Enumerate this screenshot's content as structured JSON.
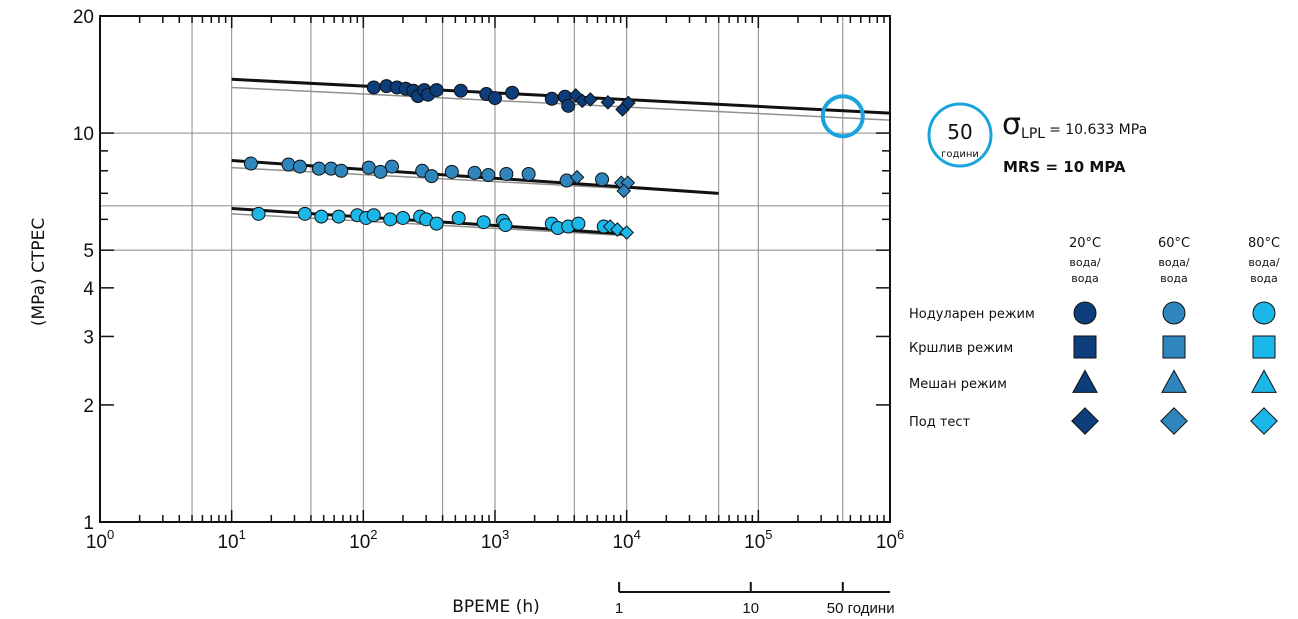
{
  "chart_data": {
    "type": "scatter",
    "xlabel": "ВРЕМЕ (h)",
    "ylabel": "(MPa) СТРЕС",
    "x_scale": "log",
    "y_scale": "log",
    "xlim": [
      1,
      1000000
    ],
    "ylim": [
      1,
      20
    ],
    "x_ticks": [
      {
        "value": 1,
        "base": "10",
        "exp": "0"
      },
      {
        "value": 10,
        "base": "10",
        "exp": "1"
      },
      {
        "value": 100,
        "base": "10",
        "exp": "2"
      },
      {
        "value": 1000,
        "base": "10",
        "exp": "3"
      },
      {
        "value": 10000,
        "base": "10",
        "exp": "4"
      },
      {
        "value": 100000,
        "base": "10",
        "exp": "5"
      },
      {
        "value": 1000000,
        "base": "10",
        "exp": "6"
      }
    ],
    "y_ticks": [
      {
        "value": 1,
        "label": "1"
      },
      {
        "value": 2,
        "label": "2"
      },
      {
        "value": 3,
        "label": "3"
      },
      {
        "value": 4,
        "label": "4"
      },
      {
        "value": 5,
        "label": "5"
      },
      {
        "value": 10,
        "label": "10"
      },
      {
        "value": 20,
        "label": "20"
      }
    ],
    "x_grid": [
      5,
      10,
      40,
      100,
      400,
      1000,
      4000,
      10000,
      50000,
      100000,
      438000
    ],
    "y_grid": [
      5,
      6.5,
      10,
      20
    ],
    "grid": true,
    "colors": {
      "c20": "#0d3d7a",
      "c60": "#2f86bd",
      "c80": "#1bb7e8",
      "lines": "#111111",
      "lpl": "#909090",
      "highlight": "#1ba3dd"
    },
    "series": [
      {
        "color": "#0d3d7a",
        "points": [
          {
            "x": 120,
            "y": 13.1,
            "shape": "circle"
          },
          {
            "x": 150,
            "y": 13.2,
            "shape": "circle"
          },
          {
            "x": 180,
            "y": 13.1,
            "shape": "circle"
          },
          {
            "x": 210,
            "y": 13.0,
            "shape": "circle"
          },
          {
            "x": 240,
            "y": 12.85,
            "shape": "circle"
          },
          {
            "x": 260,
            "y": 12.45,
            "shape": "circle"
          },
          {
            "x": 290,
            "y": 12.9,
            "shape": "circle"
          },
          {
            "x": 310,
            "y": 12.55,
            "shape": "circle"
          },
          {
            "x": 360,
            "y": 12.9,
            "shape": "circle"
          },
          {
            "x": 550,
            "y": 12.85,
            "shape": "circle"
          },
          {
            "x": 860,
            "y": 12.6,
            "shape": "circle"
          },
          {
            "x": 1000,
            "y": 12.3,
            "shape": "circle"
          },
          {
            "x": 1350,
            "y": 12.7,
            "shape": "circle"
          },
          {
            "x": 2700,
            "y": 12.25,
            "shape": "circle"
          },
          {
            "x": 3400,
            "y": 12.4,
            "shape": "circle"
          },
          {
            "x": 3600,
            "y": 11.75,
            "shape": "circle"
          },
          {
            "x": 4100,
            "y": 12.5,
            "shape": "diamond"
          },
          {
            "x": 4600,
            "y": 12.1,
            "shape": "diamond"
          },
          {
            "x": 5300,
            "y": 12.2,
            "shape": "diamond"
          },
          {
            "x": 7200,
            "y": 12.0,
            "shape": "diamond"
          },
          {
            "x": 9300,
            "y": 11.5,
            "shape": "diamond"
          },
          {
            "x": 10300,
            "y": 11.95,
            "shape": "diamond"
          }
        ],
        "trend": {
          "x": [
            10,
            1000000
          ],
          "y": [
            13.75,
            11.25
          ]
        },
        "lpl": {
          "x": [
            10,
            1000000
          ],
          "y": [
            13.1,
            10.8
          ]
        }
      },
      {
        "color": "#2f86bd",
        "points": [
          {
            "x": 14,
            "y": 8.35,
            "shape": "circle"
          },
          {
            "x": 27,
            "y": 8.3,
            "shape": "circle"
          },
          {
            "x": 33,
            "y": 8.2,
            "shape": "circle"
          },
          {
            "x": 46,
            "y": 8.1,
            "shape": "circle"
          },
          {
            "x": 57,
            "y": 8.1,
            "shape": "circle"
          },
          {
            "x": 68,
            "y": 8.0,
            "shape": "circle"
          },
          {
            "x": 110,
            "y": 8.15,
            "shape": "circle"
          },
          {
            "x": 135,
            "y": 7.95,
            "shape": "circle"
          },
          {
            "x": 165,
            "y": 8.2,
            "shape": "circle"
          },
          {
            "x": 280,
            "y": 8.0,
            "shape": "circle"
          },
          {
            "x": 330,
            "y": 7.75,
            "shape": "circle"
          },
          {
            "x": 470,
            "y": 7.95,
            "shape": "circle"
          },
          {
            "x": 700,
            "y": 7.9,
            "shape": "circle"
          },
          {
            "x": 890,
            "y": 7.8,
            "shape": "circle"
          },
          {
            "x": 1220,
            "y": 7.85,
            "shape": "circle"
          },
          {
            "x": 1800,
            "y": 7.85,
            "shape": "circle"
          },
          {
            "x": 3500,
            "y": 7.55,
            "shape": "circle"
          },
          {
            "x": 6500,
            "y": 7.6,
            "shape": "circle"
          },
          {
            "x": 4200,
            "y": 7.7,
            "shape": "diamond"
          },
          {
            "x": 9100,
            "y": 7.45,
            "shape": "diamond"
          },
          {
            "x": 10200,
            "y": 7.45,
            "shape": "diamond"
          },
          {
            "x": 9500,
            "y": 7.1,
            "shape": "diamond"
          }
        ],
        "trend": {
          "x": [
            10,
            50000
          ],
          "y": [
            8.5,
            7.0
          ]
        },
        "lpl": {
          "x": [
            10,
            10000
          ],
          "y": [
            8.15,
            7.2
          ]
        }
      },
      {
        "color": "#1bb7e8",
        "points": [
          {
            "x": 16,
            "y": 6.2,
            "shape": "circle"
          },
          {
            "x": 36,
            "y": 6.2,
            "shape": "circle"
          },
          {
            "x": 48,
            "y": 6.1,
            "shape": "circle"
          },
          {
            "x": 65,
            "y": 6.1,
            "shape": "circle"
          },
          {
            "x": 90,
            "y": 6.15,
            "shape": "circle"
          },
          {
            "x": 105,
            "y": 6.05,
            "shape": "circle"
          },
          {
            "x": 120,
            "y": 6.15,
            "shape": "circle"
          },
          {
            "x": 160,
            "y": 6.0,
            "shape": "circle"
          },
          {
            "x": 200,
            "y": 6.05,
            "shape": "circle"
          },
          {
            "x": 270,
            "y": 6.1,
            "shape": "circle"
          },
          {
            "x": 300,
            "y": 6.0,
            "shape": "circle"
          },
          {
            "x": 360,
            "y": 5.85,
            "shape": "circle"
          },
          {
            "x": 530,
            "y": 6.05,
            "shape": "circle"
          },
          {
            "x": 820,
            "y": 5.9,
            "shape": "circle"
          },
          {
            "x": 1150,
            "y": 5.95,
            "shape": "circle"
          },
          {
            "x": 1200,
            "y": 5.8,
            "shape": "circle"
          },
          {
            "x": 2700,
            "y": 5.85,
            "shape": "circle"
          },
          {
            "x": 3000,
            "y": 5.7,
            "shape": "circle"
          },
          {
            "x": 3600,
            "y": 5.75,
            "shape": "circle"
          },
          {
            "x": 4300,
            "y": 5.85,
            "shape": "circle"
          },
          {
            "x": 6700,
            "y": 5.75,
            "shape": "circle"
          },
          {
            "x": 7500,
            "y": 5.75,
            "shape": "diamond"
          },
          {
            "x": 8500,
            "y": 5.65,
            "shape": "diamond"
          },
          {
            "x": 10000,
            "y": 5.55,
            "shape": "diamond"
          }
        ],
        "trend": {
          "x": [
            10,
            10000
          ],
          "y": [
            6.4,
            5.5
          ]
        },
        "lpl": {
          "x": [
            10,
            10000
          ],
          "y": [
            6.2,
            5.45
          ]
        }
      }
    ],
    "highlight_point": {
      "x": 438000,
      "y": 11.05
    },
    "years_scale": {
      "ticks": [
        {
          "value": 1,
          "label": "1"
        },
        {
          "value": 10,
          "label": "10"
        },
        {
          "value": 50,
          "label": "50 години"
        }
      ]
    },
    "annotation": {
      "years_value": "50",
      "years_unit": "години",
      "sigma_symbol": "σ",
      "sigma_sub": "LPL",
      "sigma_value": "= 10.633 MPa",
      "mrs": "MRS = 10 MPA"
    },
    "legend": {
      "columns": [
        {
          "temp": "20°C",
          "medium1": "вода/",
          "medium2": "вода",
          "color": "#0d3d7a"
        },
        {
          "temp": "60°C",
          "medium1": "вода/",
          "medium2": "вода",
          "color": "#2f86bd"
        },
        {
          "temp": "80°C",
          "medium1": "вода/",
          "medium2": "вода",
          "color": "#1bb7e8"
        }
      ],
      "rows": [
        {
          "label": "Нодуларен режим",
          "shape": "circle"
        },
        {
          "label": "Кршлив режим",
          "shape": "square"
        },
        {
          "label": "Мешан режим",
          "shape": "triangle"
        },
        {
          "label": "Под тест",
          "shape": "diamond"
        }
      ]
    }
  }
}
